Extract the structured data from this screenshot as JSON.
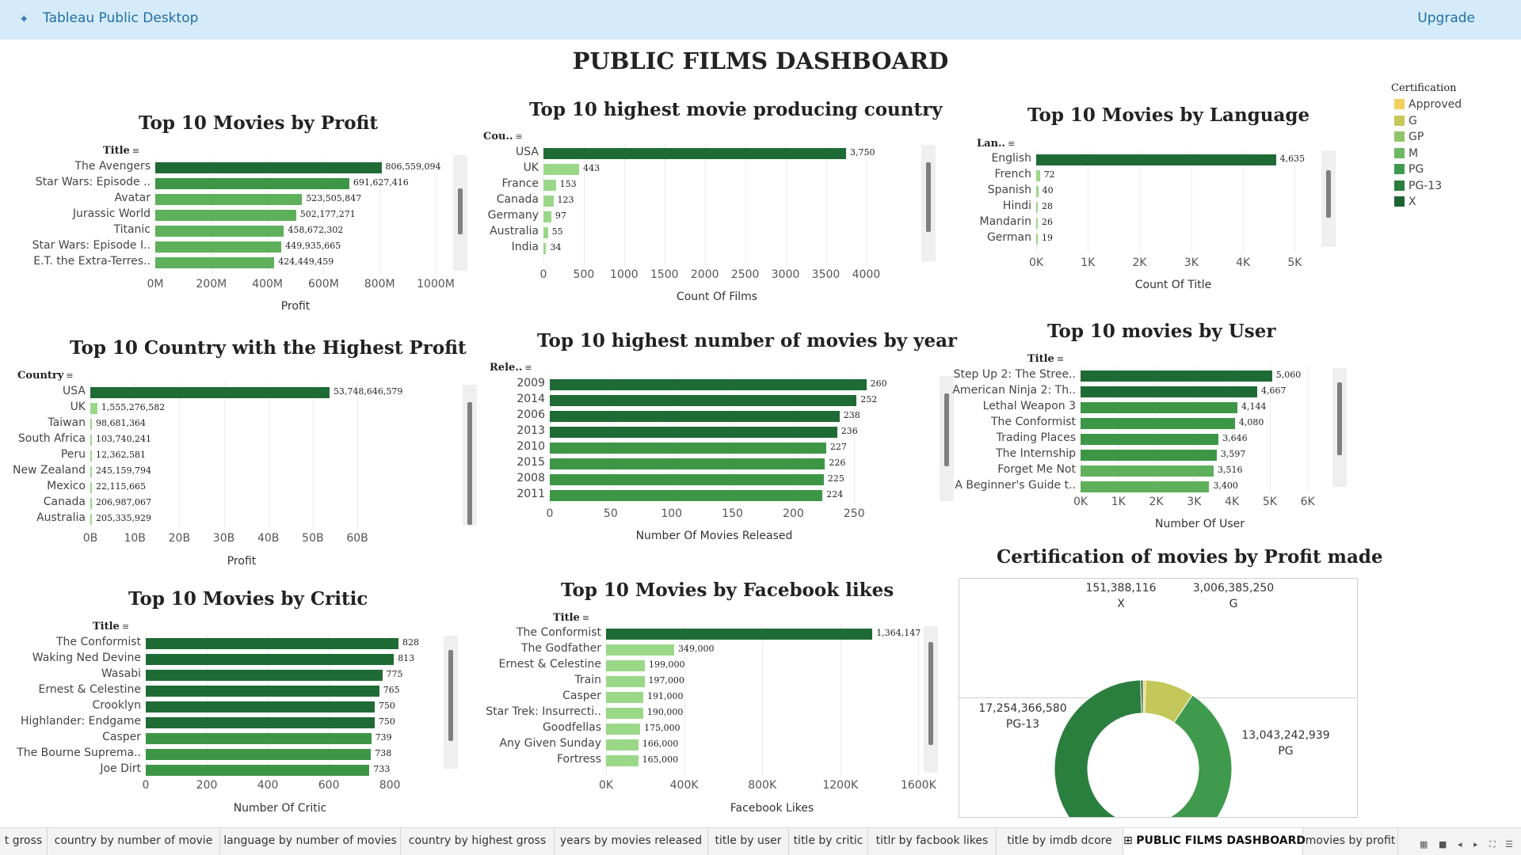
{
  "app": {
    "title": "Tableau Public Desktop",
    "upgrade_label": "Upgrade"
  },
  "dashboard_title": "PUBLIC FILMS DASHBOARD",
  "legend": {
    "title": "Certification",
    "items": [
      {
        "label": "Approved",
        "color": "#f1cf5d"
      },
      {
        "label": "G",
        "color": "#c4c75a"
      },
      {
        "label": "GP",
        "color": "#8fc56a"
      },
      {
        "label": "M",
        "color": "#6cb864"
      },
      {
        "label": "PG",
        "color": "#3f9a4e"
      },
      {
        "label": "PG-13",
        "color": "#2a7e3e"
      },
      {
        "label": "X",
        "color": "#1d6432"
      }
    ]
  },
  "chart_data": [
    {
      "id": "movies_by_profit",
      "type": "bar",
      "title": "Top 10 Movies by Profit",
      "field": "Title",
      "categories": [
        "The Avengers",
        "Star Wars: Episode ..",
        "Avatar",
        "Jurassic World",
        "Titanic",
        "Star Wars: Episode I..",
        "E.T. the Extra-Terres.."
      ],
      "values": [
        806559094,
        691627416,
        523505847,
        502177271,
        458672302,
        449935665,
        424449459
      ],
      "value_labels": [
        "806,559,094",
        "691,627,416",
        "523,505,847",
        "502,177,271",
        "458,672,302",
        "449,935,665",
        "424,449,459"
      ],
      "xlabel": "Profit",
      "xlim": [
        0,
        1000000000
      ],
      "ticks": [
        "0M",
        "200M",
        "400M",
        "600M",
        "800M",
        "1000M"
      ]
    },
    {
      "id": "country_by_films",
      "type": "bar",
      "title": "Top 10 highest movie producing country",
      "field": "Cou..",
      "categories": [
        "USA",
        "UK",
        "France",
        "Canada",
        "Germany",
        "Australia",
        "India"
      ],
      "values": [
        3750,
        443,
        153,
        123,
        97,
        55,
        34
      ],
      "value_labels": [
        "3,750",
        "443",
        "153",
        "123",
        "97",
        "55",
        "34"
      ],
      "xlabel": "Count Of Films",
      "xlim": [
        0,
        4300
      ],
      "ticks": [
        "0",
        "500",
        "1000",
        "1500",
        "2000",
        "2500",
        "3000",
        "3500",
        "4000"
      ]
    },
    {
      "id": "movies_by_language",
      "type": "bar",
      "title": "Top 10 Movies by Language",
      "field": "Lan..",
      "categories": [
        "English",
        "French",
        "Spanish",
        "Hindi",
        "Mandarin",
        "German"
      ],
      "values": [
        4635,
        72,
        40,
        28,
        26,
        19
      ],
      "value_labels": [
        "4,635",
        "72",
        "40",
        "28",
        "26",
        "19"
      ],
      "xlabel": "Count Of Title",
      "xlim": [
        0,
        5300
      ],
      "ticks": [
        "0K",
        "1K",
        "2K",
        "3K",
        "4K",
        "5K"
      ]
    },
    {
      "id": "country_by_profit",
      "type": "bar",
      "title": "Top 10 Country with the Highest Profit",
      "field": "Country",
      "categories": [
        "USA",
        "UK",
        "Taiwan",
        "South Africa",
        "Peru",
        "New Zealand",
        "Mexico",
        "Canada",
        "Australia"
      ],
      "values": [
        53748646579,
        1555276582,
        98681364,
        103740241,
        12362581,
        245159794,
        22115665,
        206987067,
        205335929
      ],
      "value_labels": [
        "53,748,646,579",
        "1,555,276,582",
        "98,681,364",
        "103,740,241",
        "12,362,581",
        "245,159,794",
        "22,115,665",
        "206,987,067",
        "205,335,929"
      ],
      "xlabel": "Profit",
      "xlim": [
        0,
        68000000000
      ],
      "ticks": [
        "0B",
        "10B",
        "20B",
        "30B",
        "40B",
        "50B",
        "60B"
      ]
    },
    {
      "id": "movies_by_year",
      "type": "bar",
      "title": "Top 10 highest number of movies by year",
      "field": "Rele..",
      "categories": [
        "2009",
        "2014",
        "2006",
        "2013",
        "2010",
        "2015",
        "2008",
        "2011"
      ],
      "values": [
        260,
        252,
        238,
        236,
        227,
        226,
        225,
        224
      ],
      "value_labels": [
        "260",
        "252",
        "238",
        "236",
        "227",
        "226",
        "225",
        "224"
      ],
      "xlabel": "Number Of Movies Released",
      "xlim": [
        0,
        270
      ],
      "ticks": [
        "0",
        "50",
        "100",
        "150",
        "200",
        "250"
      ]
    },
    {
      "id": "movies_by_user",
      "type": "bar",
      "title": "Top 10 movies by User",
      "field": "Title",
      "categories": [
        "Step Up 2: The Stree..",
        "American Ninja 2: Th..",
        "Lethal Weapon 3",
        "The Conformist",
        "Trading Places",
        "The Internship",
        "Forget Me Not",
        "A Beginner's Guide t.."
      ],
      "values": [
        5060,
        4667,
        4144,
        4080,
        3646,
        3597,
        3516,
        3400
      ],
      "value_labels": [
        "5,060",
        "4,667",
        "4,144",
        "4,080",
        "3,646",
        "3,597",
        "3,516",
        "3,400"
      ],
      "xlabel": "Number Of User",
      "xlim": [
        0,
        6300
      ],
      "ticks": [
        "0K",
        "1K",
        "2K",
        "3K",
        "4K",
        "5K",
        "6K"
      ]
    },
    {
      "id": "movies_by_critic",
      "type": "bar",
      "title": "Top 10 Movies by Critic",
      "field": "Title",
      "categories": [
        "The Conformist",
        "Waking Ned Devine",
        "Wasabi",
        "Ernest & Celestine",
        "Crooklyn",
        "Highlander: Endgame",
        "Casper",
        "The Bourne Suprema..",
        "Joe Dirt"
      ],
      "values": [
        828,
        813,
        775,
        765,
        750,
        750,
        739,
        738,
        733
      ],
      "value_labels": [
        "828",
        "813",
        "775",
        "765",
        "750",
        "750",
        "739",
        "738",
        "733"
      ],
      "xlabel": "Number Of Critic",
      "xlim": [
        0,
        880
      ],
      "ticks": [
        "0",
        "200",
        "400",
        "600",
        "800"
      ]
    },
    {
      "id": "movies_by_facebook",
      "type": "bar",
      "title": "Top 10 Movies by Facebook likes",
      "field": "Title",
      "categories": [
        "The Conformist",
        "The Godfather",
        "Ernest & Celestine",
        "Train",
        "Casper",
        "Star Trek: Insurrecti..",
        "Goodfellas",
        "Any Given Sunday",
        "Fortress"
      ],
      "values": [
        1364147,
        349000,
        199000,
        197000,
        191000,
        190000,
        175000,
        166000,
        165000
      ],
      "value_labels": [
        "1,364,147",
        "349,000",
        "199,000",
        "197,000",
        "191,000",
        "190,000",
        "175,000",
        "166,000",
        "165,000"
      ],
      "xlabel": "Facebook Likes",
      "xlim": [
        0,
        1700000
      ],
      "ticks": [
        "0K",
        "400K",
        "800K",
        "1200K",
        "1600K"
      ]
    },
    {
      "id": "certification_by_profit",
      "type": "pie",
      "title": "Certification of movies by Profit made",
      "slices": [
        {
          "label": "Approved",
          "value": 151388116
        },
        {
          "label": "G",
          "value": 3006385250
        },
        {
          "label": "PG",
          "value": 13043242939
        },
        {
          "label": "PG-13",
          "value": 17254366580
        },
        {
          "label": "X",
          "value": 151388116
        }
      ],
      "labels": [
        {
          "value": "151,388,116",
          "name": "X"
        },
        {
          "value": "3,006,385,250",
          "name": "G"
        },
        {
          "value": "13,043,242,939",
          "name": "PG"
        },
        {
          "value": "17,254,366,580",
          "name": "PG-13"
        }
      ]
    }
  ],
  "tabs": [
    {
      "label": "t gross",
      "active": false
    },
    {
      "label": "country by number of movie",
      "active": false
    },
    {
      "label": "language by number of movies",
      "active": false
    },
    {
      "label": "country by highest gross",
      "active": false
    },
    {
      "label": "years by movies released",
      "active": false
    },
    {
      "label": "title by user",
      "active": false
    },
    {
      "label": "title by critic",
      "active": false
    },
    {
      "label": "titlr by facbook likes",
      "active": false
    },
    {
      "label": "title by imdb dcore",
      "active": false
    },
    {
      "label": "PUBLIC FILMS DASHBOARD",
      "active": true
    },
    {
      "label": "movies by profit",
      "active": false
    }
  ]
}
